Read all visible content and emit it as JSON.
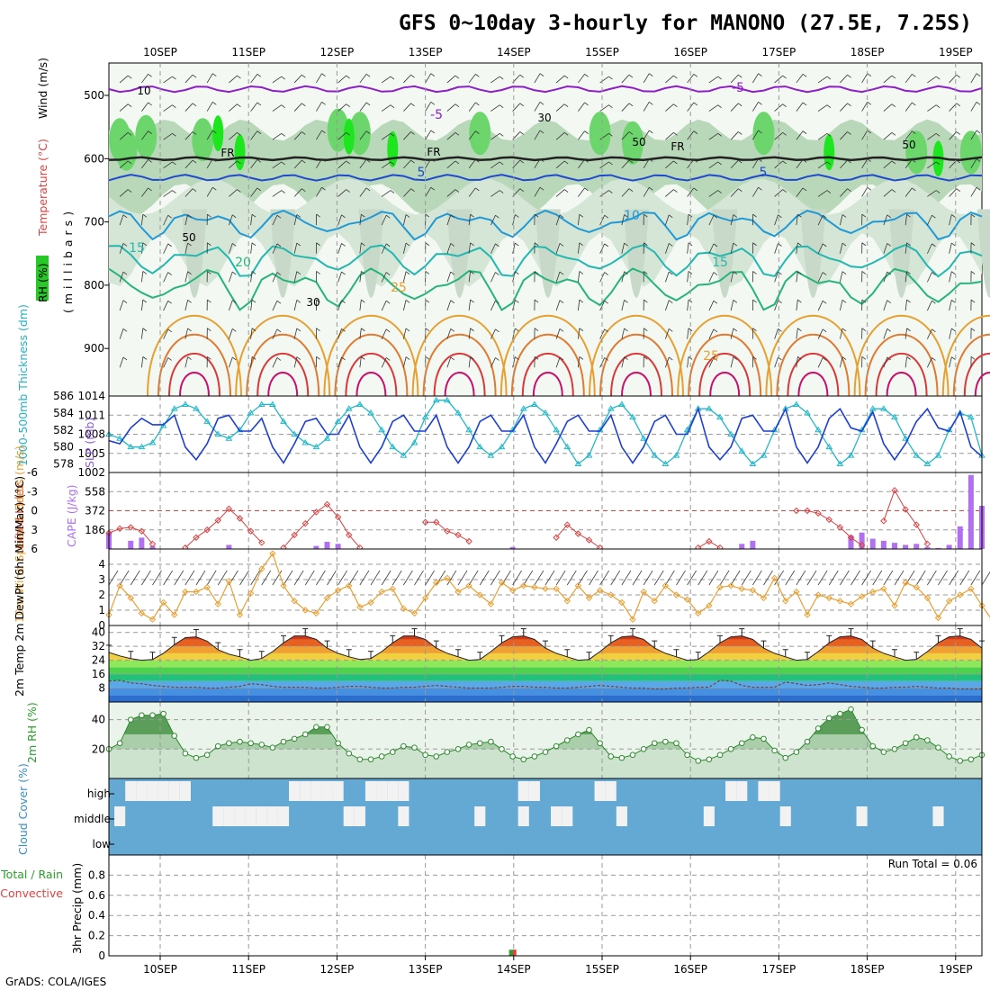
{
  "title": "GFS 0~10day 3-hourly for MANONO (27.5E, 7.25S)",
  "footer": "GrADS: COLA/IGES",
  "date_labels": [
    "10SEP",
    "11SEP",
    "12SEP",
    "13SEP",
    "14SEP",
    "15SEP",
    "16SEP",
    "17SEP",
    "18SEP",
    "19SEP"
  ],
  "run_total": "Run Total = 0.06",
  "chart_data": [
    {
      "type": "contour",
      "name": "upper-air",
      "ylabel_parts": [
        "RH (%)",
        "Temperature (°C)",
        "Wind (m/s)",
        "(millibars)"
      ],
      "pressure_ticks": [
        "500",
        "600",
        "700",
        "800",
        "900"
      ],
      "freezing_label": "FR",
      "temp_contour_labels": [
        "-5",
        "-5",
        "5",
        "5",
        "10",
        "15",
        "15",
        "20",
        "25",
        "25"
      ],
      "rh_contour_labels": [
        "10",
        "30",
        "50",
        "50",
        "50",
        "30"
      ]
    },
    {
      "type": "line",
      "name": "thickness-slp",
      "ylabel_left": "1000-500mb Thickness (dm)",
      "ylabel_right": "SLP (mb)",
      "thickness_ticks": [
        "578",
        "580",
        "582",
        "584",
        "586"
      ],
      "slp_ticks": [
        "1002",
        "1005",
        "1008",
        "1011",
        "1014"
      ],
      "slp_range": [
        1002,
        1014
      ],
      "thickness_range": [
        577,
        586
      ],
      "slp_values": [
        1007,
        1006.5,
        1009,
        1010.5,
        1009.5,
        1009.5,
        1011,
        1006,
        1004,
        1006.5,
        1010.5,
        1011,
        1008.5,
        1008.5,
        1010.5,
        1006,
        1003.5,
        1006.5,
        1010,
        1010.5,
        1008,
        1008,
        1011,
        1006,
        1003.5,
        1006,
        1010,
        1011,
        1008.5,
        1008.5,
        1011,
        1006,
        1003.5,
        1006,
        1010,
        1011,
        1008.5,
        1008.5,
        1011,
        1006,
        1003.5,
        1006.5,
        1010,
        1011,
        1008.5,
        1008.5,
        1011,
        1006,
        1003.5,
        1006,
        1010,
        1011,
        1008,
        1008,
        1012,
        1006,
        1004,
        1006,
        1010.5,
        1011,
        1008.5,
        1008.5,
        1012,
        1006,
        1003.5,
        1006,
        1010.5,
        1012,
        1009,
        1008.5,
        1011.5,
        1006.5,
        1004,
        1006.5,
        1010,
        1012,
        1009,
        1008.5,
        1011.5,
        1006,
        1004.5
      ],
      "thickness_values": [
        581.5,
        581,
        580,
        580,
        580.5,
        582.5,
        584.5,
        585,
        584.5,
        583,
        581.5,
        581,
        582,
        584,
        585,
        585,
        583,
        581.5,
        580.5,
        580,
        581,
        583,
        584.5,
        585,
        584,
        582,
        580,
        579,
        580.5,
        583.5,
        585.5,
        585.5,
        584,
        582,
        580,
        579,
        580,
        582,
        584.5,
        585,
        584,
        582,
        580,
        578,
        579,
        582,
        584.5,
        585,
        583.5,
        581,
        579,
        578,
        579,
        582,
        584.5,
        584.5,
        583.5,
        581.5,
        579.5,
        578,
        579,
        582,
        584.5,
        585,
        584,
        582,
        580,
        578,
        579,
        582,
        584.5,
        584.5,
        583.5,
        581,
        579,
        578,
        579,
        582,
        584,
        583.5,
        579
      ]
    },
    {
      "type": "line",
      "name": "stability",
      "ylabel_left": "Lifted Index",
      "ylabel_right": "CAPE (J/kg)",
      "li_ticks": [
        "-6",
        "-3",
        "0",
        "3",
        "6"
      ],
      "cape_ticks": [
        "558",
        "372",
        "186"
      ],
      "li_range": [
        -6,
        6
      ],
      "cape_range": [
        0,
        744
      ],
      "li_values": [
        3.5,
        2.8,
        2.6,
        3.2,
        5.2,
        null,
        null,
        5.8,
        4.2,
        3,
        1.5,
        -0.3,
        1.2,
        3.2,
        5,
        null,
        5.8,
        3.8,
        2,
        0.2,
        -1,
        1,
        3.8,
        5.8,
        null,
        null,
        null,
        null,
        null,
        1.8,
        1.8,
        3.2,
        3.8,
        4.8,
        null,
        null,
        null,
        null,
        null,
        null,
        null,
        4.2,
        2.2,
        3.6,
        4.6,
        5.8,
        null,
        null,
        null,
        null,
        null,
        null,
        null,
        null,
        5.8,
        4.8,
        5.8,
        null,
        null,
        null,
        null,
        null,
        null,
        0,
        0,
        0.4,
        1.4,
        2.6,
        4.2,
        5.4,
        null,
        1.6,
        -3.2,
        -0.2,
        2.2,
        5.2,
        null,
        null,
        null,
        null,
        null
      ],
      "cape_bars": [
        [
          0,
          160
        ],
        [
          2,
          80
        ],
        [
          3,
          110
        ],
        [
          4,
          30
        ],
        [
          11,
          40
        ],
        [
          19,
          30
        ],
        [
          20,
          70
        ],
        [
          21,
          50
        ],
        [
          37,
          20
        ],
        [
          58,
          50
        ],
        [
          59,
          80
        ],
        [
          68,
          130
        ],
        [
          69,
          160
        ],
        [
          70,
          100
        ],
        [
          71,
          80
        ],
        [
          72,
          60
        ],
        [
          73,
          40
        ],
        [
          74,
          50
        ],
        [
          75,
          20
        ],
        [
          76,
          10
        ],
        [
          77,
          40
        ],
        [
          78,
          220
        ],
        [
          79,
          720
        ],
        [
          80,
          420
        ],
        [
          81,
          330
        ]
      ]
    },
    {
      "type": "line",
      "name": "wind10m",
      "ylabel": "10m Wind Speed & Barbs (m/s)",
      "ticks": [
        "0",
        "1",
        "2",
        "3",
        "4"
      ],
      "range": [
        0,
        5
      ],
      "values": [
        0.7,
        2.6,
        1.8,
        0.8,
        0.4,
        1.5,
        0.7,
        2.2,
        2.2,
        2.5,
        1.4,
        2.9,
        0.7,
        2.1,
        3.7,
        4.7,
        2.6,
        1.6,
        1.0,
        0.8,
        1.8,
        2.3,
        2.6,
        1.2,
        1.5,
        2.2,
        2.4,
        1.1,
        0.8,
        1.8,
        2.8,
        3.1,
        2.2,
        2.6,
        2.0,
        1.4,
        2.8,
        2.3,
        2.6,
        2.5,
        2.4,
        2.4,
        1.6,
        2.6,
        1.8,
        2.3,
        2.0,
        1.5,
        0.4,
        2.2,
        1.6,
        2.6,
        2.0,
        1.7,
        0.8,
        1.3,
        2.5,
        2.6,
        2.4,
        2.3,
        1.8,
        3.1,
        1.6,
        2.2,
        0.7,
        2.0,
        1.8,
        1.6,
        1.4,
        1.9,
        2.2,
        2.4,
        1.3,
        2.8,
        2.5,
        1.8,
        0.5,
        1.6,
        2.0,
        2.4,
        1.3,
        0.3,
        2.4,
        1.6,
        0.9,
        1.8,
        2.7
      ]
    },
    {
      "type": "area",
      "name": "temperature2m",
      "ylabel": "2m Temp 2m DewPt (6hr Min/Max) (°C)",
      "ticks": [
        "8",
        "16",
        "24",
        "32",
        "40"
      ],
      "range": [
        0,
        44
      ],
      "temp_values": [
        28.5,
        26.5,
        25,
        24,
        24.5,
        28,
        33,
        37,
        37.5,
        35,
        30,
        27.5,
        26,
        24,
        25,
        29,
        34,
        38,
        38,
        36,
        31,
        28,
        26,
        24.5,
        25,
        29,
        34,
        38,
        38,
        36,
        31,
        28,
        26,
        24,
        24.5,
        29,
        34,
        37.5,
        38,
        36,
        31,
        28,
        26,
        24,
        24.5,
        29,
        34,
        37.5,
        38,
        36,
        31,
        28,
        26,
        24,
        24.5,
        29,
        34,
        37.5,
        38,
        36,
        31,
        28,
        26,
        24,
        24.5,
        29,
        34,
        37.5,
        38,
        36,
        31,
        28,
        26,
        24,
        24.5,
        29,
        34,
        37.5,
        38,
        36,
        31,
        28
      ],
      "dewpoint_values": [
        12,
        12.5,
        11,
        10.5,
        9.5,
        9,
        8.5,
        8.5,
        8.5,
        8,
        8,
        8.5,
        9,
        10.5,
        10,
        9,
        8.5,
        8.5,
        8.5,
        8,
        8,
        8.5,
        9,
        9,
        8.5,
        8,
        8,
        8.5,
        8.5,
        9,
        9.5,
        9,
        8.5,
        8,
        8,
        8,
        8.5,
        9,
        9,
        8.5,
        8.5,
        8,
        8,
        8.5,
        9,
        9.5,
        9,
        8.5,
        8,
        8,
        7.5,
        7.5,
        8,
        8,
        8.5,
        8.5,
        12.5,
        12,
        9.5,
        8.5,
        8.5,
        8.5,
        11.5,
        10.5,
        9.5,
        10,
        11,
        10,
        9,
        8.5,
        8,
        8,
        8.5,
        8.5,
        9,
        8.5,
        8,
        8,
        7.5,
        7.5,
        7.5,
        8,
        8.5
      ]
    },
    {
      "type": "area",
      "name": "rh2m",
      "ylabel": "2m RH (%)",
      "ticks": [
        "20",
        "40"
      ],
      "range": [
        0,
        52
      ],
      "values": [
        20,
        24,
        40,
        43,
        43,
        44,
        29,
        17,
        14,
        16,
        22,
        24,
        25,
        24,
        23,
        21,
        25,
        27,
        30,
        35,
        35,
        24,
        17,
        13,
        13,
        15,
        18,
        22,
        21,
        16,
        15,
        18,
        20,
        23,
        24,
        25,
        20,
        15,
        13,
        15,
        18,
        22,
        26,
        30,
        33,
        24,
        15,
        14,
        16,
        20,
        24,
        25,
        24,
        16,
        12,
        13,
        16,
        20,
        24,
        28,
        27,
        19,
        14,
        18,
        25,
        34,
        41,
        44,
        47,
        33,
        22,
        18,
        20,
        24,
        28,
        26,
        21,
        15,
        12,
        13,
        16,
        19,
        25,
        30,
        32,
        28
      ]
    },
    {
      "type": "heatmap",
      "name": "cloud-cover",
      "ylabel": "Cloud Cover (%)",
      "levels": [
        "high",
        "middle",
        "low"
      ],
      "high_cover": [
        [
          2,
          3,
          4
        ],
        [
          5,
          6
        ],
        [
          7
        ],
        [
          17,
          18,
          19
        ],
        [
          20,
          21
        ],
        [
          24,
          25
        ],
        [
          26,
          27
        ],
        [
          38,
          39
        ],
        [
          45,
          46
        ],
        [
          57,
          58
        ],
        [
          60,
          61
        ],
        [
          84,
          85
        ]
      ],
      "middle_cover": [
        [
          1
        ],
        [
          10,
          11,
          12
        ],
        [
          13,
          14
        ],
        [
          15,
          16
        ],
        [
          22,
          23
        ],
        [
          27
        ],
        [
          34
        ],
        [
          38
        ],
        [
          41,
          42
        ],
        [
          47
        ],
        [
          55
        ],
        [
          62
        ],
        [
          69
        ],
        [
          76
        ]
      ]
    },
    {
      "type": "bar",
      "name": "precipitation",
      "ylabel_parts": [
        "Total / Rain",
        "Convective",
        "3hr Precip (mm)"
      ],
      "ticks": [
        "0",
        "0.2",
        "0.4",
        "0.6",
        "0.8"
      ],
      "range": [
        0,
        1
      ],
      "precip_bars": [
        [
          37,
          0.06
        ]
      ]
    }
  ],
  "colors": {
    "purple": "#8a2be2",
    "blue": "#1e49d0",
    "cyan": "#22b2c8",
    "orange": "#e8a033",
    "red": "#e04040",
    "green": "#2aa02a",
    "cloud_blue": "#64a8d4"
  }
}
